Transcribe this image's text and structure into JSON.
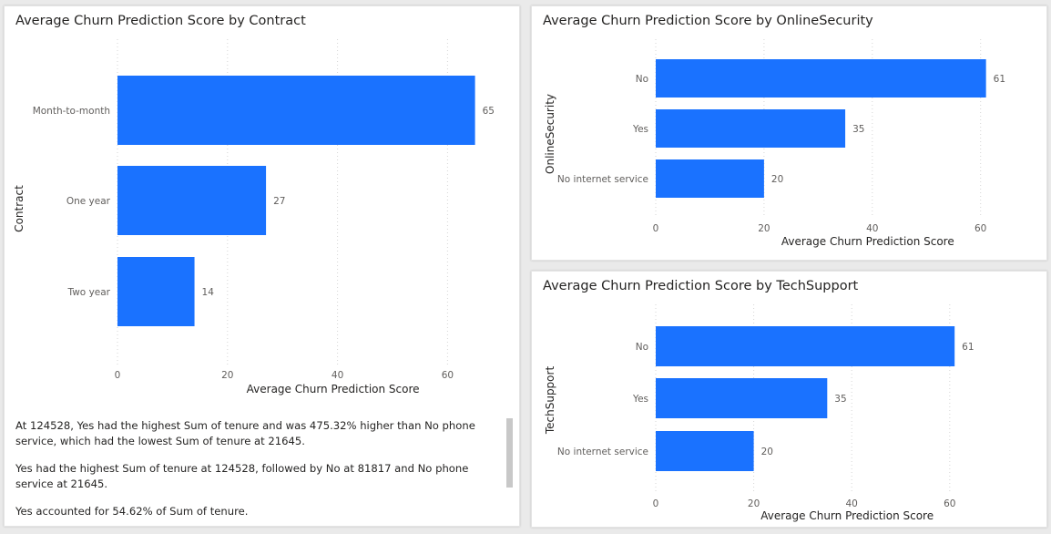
{
  "chart_data": [
    {
      "id": "contract",
      "type": "bar",
      "orientation": "horizontal",
      "title": "Average Churn Prediction Score by Contract",
      "xlabel": "Average Churn Prediction Score",
      "ylabel": "Contract",
      "categories": [
        "Month-to-month",
        "One year",
        "Two year"
      ],
      "values": [
        65,
        27,
        14
      ],
      "xlim": [
        0,
        70
      ],
      "xticks": [
        0,
        20,
        40,
        60
      ],
      "grid": true,
      "color": "#1a72ff"
    },
    {
      "id": "onlinesecurity",
      "type": "bar",
      "orientation": "horizontal",
      "title": "Average Churn Prediction Score by OnlineSecurity",
      "xlabel": "Average Churn Prediction Score",
      "ylabel": "OnlineSecurity",
      "categories": [
        "No",
        "Yes",
        "No internet service"
      ],
      "values": [
        61,
        35,
        20
      ],
      "xlim": [
        0,
        65
      ],
      "xticks": [
        0,
        20,
        40,
        60
      ],
      "grid": true,
      "color": "#1a72ff"
    },
    {
      "id": "techsupport",
      "type": "bar",
      "orientation": "horizontal",
      "title": "Average Churn Prediction Score by TechSupport",
      "xlabel": "Average Churn Prediction Score",
      "ylabel": "TechSupport",
      "categories": [
        "No",
        "Yes",
        "No internet service"
      ],
      "values": [
        61,
        35,
        20
      ],
      "xlim": [
        0,
        65
      ],
      "xticks": [
        0,
        20,
        40,
        60
      ],
      "grid": true,
      "color": "#1a72ff"
    }
  ],
  "narrative": {
    "p1": "At 124528, Yes had the highest Sum of tenure and was 475.32% higher than No phone service, which had the lowest Sum of tenure at 21645.",
    "p2": "Yes had the highest Sum of tenure at 124528, followed by No at 81817 and No phone service at 21645.",
    "p3": "Yes accounted for 54.62% of Sum of tenure."
  }
}
